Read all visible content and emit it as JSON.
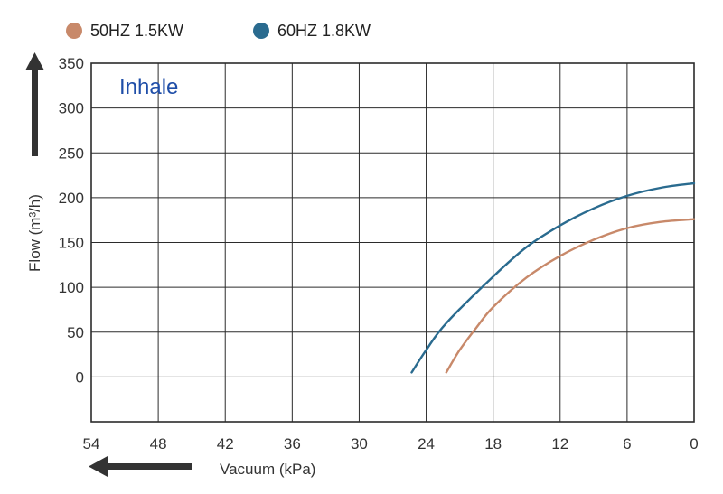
{
  "chart_data": {
    "type": "line",
    "annotation": "Inhale",
    "annotation_color": "#1f4ea8",
    "xlabel": "Vacuum (kPa)",
    "ylabel": "Flow (m³/h)",
    "x_reversed": true,
    "xlim": [
      0,
      54
    ],
    "ylim": [
      -50,
      350
    ],
    "x_ticks": [
      0,
      6,
      12,
      18,
      24,
      30,
      36,
      42,
      48,
      54
    ],
    "y_ticks": [
      0,
      50,
      100,
      150,
      200,
      250,
      300,
      350
    ],
    "grid": true,
    "legend_position": "top-left",
    "series": [
      {
        "name": "50HZ  1.5KW",
        "color": "#c8896a",
        "points": [
          [
            22.2,
            5
          ],
          [
            21,
            30
          ],
          [
            19.5,
            55
          ],
          [
            18,
            78
          ],
          [
            15,
            111
          ],
          [
            12,
            135
          ],
          [
            9,
            153
          ],
          [
            6,
            166
          ],
          [
            3,
            173
          ],
          [
            0,
            176
          ]
        ]
      },
      {
        "name": "60HZ 1.8KW",
        "color": "#2a6b8f",
        "points": [
          [
            25.3,
            5
          ],
          [
            24,
            30
          ],
          [
            22.2,
            60
          ],
          [
            18,
            112
          ],
          [
            15,
            145
          ],
          [
            12,
            169
          ],
          [
            9,
            188
          ],
          [
            6,
            202
          ],
          [
            3,
            211
          ],
          [
            0,
            216
          ]
        ]
      }
    ]
  }
}
